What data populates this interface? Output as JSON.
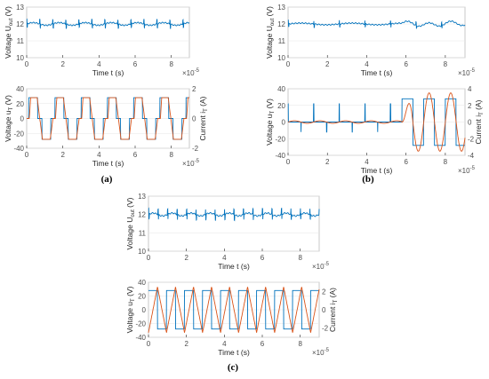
{
  "figure": {
    "panel_labels": [
      "(a)",
      "(b)",
      "(c)"
    ]
  },
  "colors": {
    "blue": "#0072BD",
    "orange": "#D95319",
    "axis": "#262626",
    "grid": "#e6e6e6",
    "frame": "#bdbdbd"
  },
  "chart_data": [
    {
      "id": "a-top",
      "type": "line",
      "xlabel": "Time t (s)",
      "ylabel": "Voltage U_out (V)",
      "x_exponent": "×10^-5",
      "xlim": [
        0,
        9
      ],
      "ylim": [
        10,
        13
      ],
      "xticks": [
        "0",
        "2",
        "4",
        "6",
        "8"
      ],
      "yticks": [
        "10",
        "11",
        "12",
        "13"
      ],
      "series": [
        {
          "color": "#0072BD",
          "mean": 12.0,
          "ripple": 0.08,
          "spike_period": 0.72,
          "spike_amp": 0.25
        }
      ]
    },
    {
      "id": "a-bottom",
      "type": "line",
      "xlabel": "Time t (s)",
      "ylabel": "Voltage u_T (V)",
      "ylabel_right": "Current i_T (A)",
      "x_exponent": "×10^-5",
      "xlim": [
        0,
        9
      ],
      "ylim": [
        -40,
        40
      ],
      "ylim_right": [
        -2,
        2
      ],
      "xticks": [
        "0",
        "2",
        "4",
        "6",
        "8"
      ],
      "yticks": [
        "-40",
        "-20",
        "0",
        "20",
        "40"
      ],
      "yticks_right": [
        "-2",
        "0",
        "2"
      ],
      "series": [
        {
          "color": "#0072BD",
          "axis": "left",
          "shape": "quasi-square",
          "period": 1.45,
          "amplitude": 28
        },
        {
          "color": "#D95319",
          "axis": "right",
          "shape": "trapezoid",
          "period": 1.45,
          "amplitude": 1.4
        }
      ]
    },
    {
      "id": "b-top",
      "type": "line",
      "xlabel": "Time t (s)",
      "ylabel": "Voltage U_out (V)",
      "x_exponent": "×10^-5",
      "xlim": [
        0,
        9
      ],
      "ylim": [
        10,
        13
      ],
      "xticks": [
        "0",
        "2",
        "4",
        "6",
        "8"
      ],
      "yticks": [
        "10",
        "11",
        "12",
        "13"
      ],
      "series": [
        {
          "color": "#0072BD",
          "mean": 12.0,
          "ripple": 0.05,
          "spike_period": 1.3,
          "spike_amp": 0.2,
          "disturbance_start": 5.8
        }
      ]
    },
    {
      "id": "b-bottom",
      "type": "line",
      "xlabel": "Time t (s)",
      "ylabel": "Voltage u_T (V)",
      "ylabel_right": "Current i_T (A)",
      "x_exponent": "×10^-5",
      "xlim": [
        0,
        9
      ],
      "ylim": [
        -40,
        40
      ],
      "ylim_right": [
        -4,
        4
      ],
      "xticks": [
        "0",
        "2",
        "4",
        "6",
        "8"
      ],
      "yticks": [
        "-40",
        "-20",
        "0",
        "20",
        "40"
      ],
      "yticks_right": [
        "-4",
        "-2",
        "0",
        "2",
        "4"
      ],
      "series": [
        {
          "color": "#0072BD",
          "axis": "left",
          "shape": "burst",
          "burst_start": 5.8,
          "period": 1.1,
          "amplitude": 28
        },
        {
          "color": "#D95319",
          "axis": "right",
          "shape": "burst-sine",
          "burst_start": 5.8,
          "period": 1.1,
          "amplitude": 3.5
        }
      ]
    },
    {
      "id": "c-top",
      "type": "line",
      "xlabel": "Time t (s)",
      "ylabel": "Voltage U_out (V)",
      "x_exponent": "×10^-5",
      "xlim": [
        0,
        9
      ],
      "ylim": [
        10,
        13
      ],
      "xticks": [
        "0",
        "2",
        "4",
        "6",
        "8"
      ],
      "yticks": [
        "10",
        "11",
        "12",
        "13"
      ],
      "series": [
        {
          "color": "#0072BD",
          "mean": 12.0,
          "ripple": 0.08,
          "spike_period": 0.5,
          "spike_amp": 0.3
        }
      ]
    },
    {
      "id": "c-bottom",
      "type": "line",
      "xlabel": "Time t (s)",
      "ylabel": "Voltage u_T (V)",
      "ylabel_right": "Current i_T (A)",
      "x_exponent": "×10^-5",
      "xlim": [
        0,
        9
      ],
      "ylim": [
        -40,
        40
      ],
      "ylim_right": [
        -3,
        3
      ],
      "xticks": [
        "0",
        "2",
        "4",
        "6",
        "8"
      ],
      "yticks": [
        "-40",
        "-20",
        "0",
        "20",
        "40"
      ],
      "yticks_right": [
        "-2",
        "0",
        "2"
      ],
      "series": [
        {
          "color": "#0072BD",
          "axis": "left",
          "shape": "square",
          "period": 0.95,
          "amplitude": 28
        },
        {
          "color": "#D95319",
          "axis": "right",
          "shape": "triangle",
          "period": 0.95,
          "amplitude": 2.5
        }
      ]
    }
  ]
}
